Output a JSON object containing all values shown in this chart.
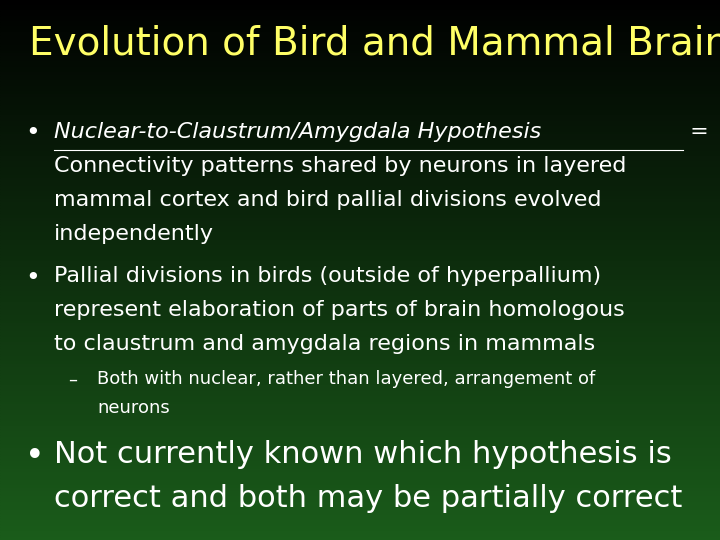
{
  "title": "Evolution of Bird and Mammal Brains",
  "title_color": "#FFFF66",
  "title_fontsize": 28,
  "bg_top": "#000000",
  "bg_bottom": "#1a5c1a",
  "bullet1_italic_underline": "Nuclear-to-Claustrum/Amygdala Hypothesis",
  "bullet1_line1_suffix": " =",
  "bullet1_lines": [
    "Connectivity patterns shared by neurons in layered",
    "mammal cortex and bird pallial divisions evolved",
    "independently"
  ],
  "bullet2_lines": [
    "Pallial divisions in birds (outside of hyperpallium)",
    "represent elaboration of parts of brain homologous",
    "to claustrum and amygdala regions in mammals"
  ],
  "sub_bullet_lines": [
    "Both with nuclear, rather than layered, arrangement of",
    "neurons"
  ],
  "bullet3_lines": [
    "Not currently known which hypothesis is",
    "correct and both may be partially correct"
  ],
  "text_color": "#ffffff",
  "bullet_fontsize": 16,
  "sub_fontsize": 13,
  "large_fontsize": 22
}
